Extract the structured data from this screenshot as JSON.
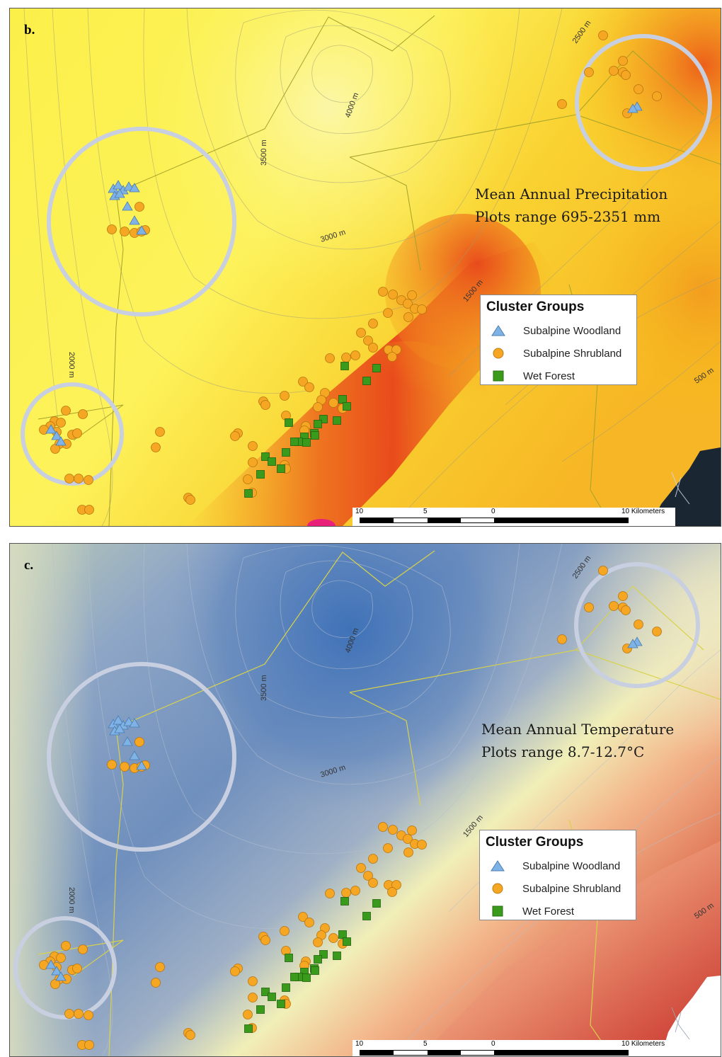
{
  "panels": [
    {
      "id": "b",
      "letter": "b.",
      "title_line1": "Mean Annual Precipitation",
      "title_line2": "Plots range 695-2351 mm",
      "surface": "precipitation"
    },
    {
      "id": "c",
      "letter": "c.",
      "title_line1": "Mean Annual Temperature",
      "title_line2": "Plots range 8.7-12.7°C",
      "surface": "temperature"
    }
  ],
  "legend": {
    "title": "Cluster Groups",
    "items": [
      {
        "label": "Subalpine Woodland",
        "symbol": "triangle",
        "color": "#7fb2e5"
      },
      {
        "label": "Subalpine Shrubland",
        "symbol": "circle",
        "color": "#f5a623"
      },
      {
        "label": "Wet Forest",
        "symbol": "square",
        "color": "#3a9a1c"
      }
    ]
  },
  "contours": {
    "c4000": "4000 m",
    "c3500": "3500 m",
    "c3000": "3000 m",
    "c2500": "2500 m",
    "c2000": "2000 m",
    "c1500": "1500 m",
    "c500": "500 m"
  },
  "scale": {
    "labels": [
      "10",
      "5",
      "0",
      "10 Kilometers"
    ]
  },
  "colors": {
    "woodland": "#7fb2e5",
    "shrubland": "#f5a623",
    "wetforest": "#3a9a1c",
    "boundary": "#a6a22a",
    "highlight_circle": "#c8cfe0",
    "ocean": "#1b2633"
  }
}
